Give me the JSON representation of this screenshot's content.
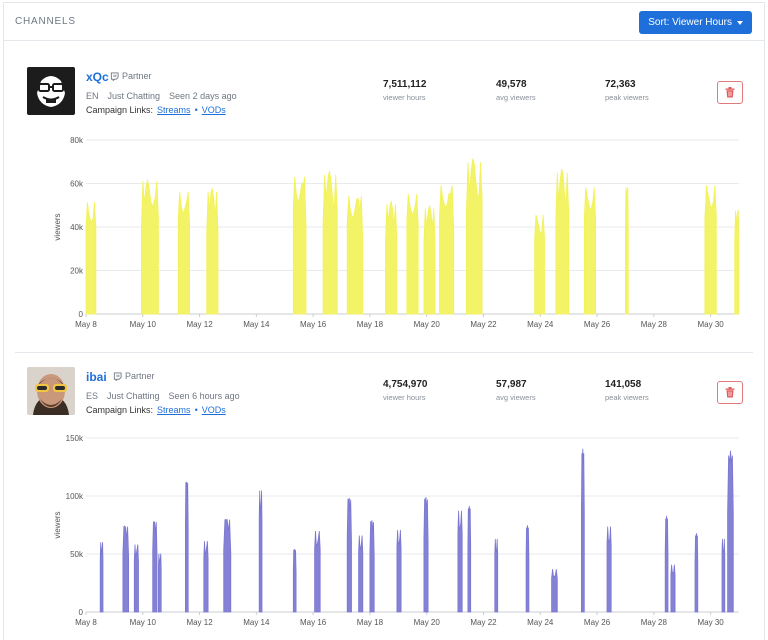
{
  "header": {
    "title": "CHANNELS",
    "sort_label": "Sort: Viewer Hours"
  },
  "channels": [
    {
      "name": "xQc",
      "partner_label": "Partner",
      "language": "EN",
      "category": "Just Chatting",
      "seen": "Seen 2 days ago",
      "campaign_label": "Campaign Links:",
      "links": [
        "Streams",
        "VODs"
      ],
      "link_separator": "•",
      "stats": [
        {
          "value": "7,511,112",
          "label": "viewer hours"
        },
        {
          "value": "49,578",
          "label": "avg viewers"
        },
        {
          "value": "72,363",
          "label": "peak viewers"
        }
      ]
    },
    {
      "name": "ibai",
      "partner_label": "Partner",
      "language": "ES",
      "category": "Just Chatting",
      "seen": "Seen 6 hours ago",
      "campaign_label": "Campaign Links:",
      "links": [
        "Streams",
        "VODs"
      ],
      "link_separator": "•",
      "stats": [
        {
          "value": "4,754,970",
          "label": "viewer hours"
        },
        {
          "value": "57,987",
          "label": "avg viewers"
        },
        {
          "value": "141,058",
          "label": "peak viewers"
        }
      ]
    }
  ],
  "colors": {
    "accent": "#1e6fd9",
    "xqc_series": "#f2f25a",
    "ibai_series": "#7b77d1",
    "delete": "#e05a5a"
  },
  "chart_data": [
    {
      "type": "area",
      "ylabel": "viewers",
      "ylim": [
        0,
        80000
      ],
      "y_ticks": [
        "0",
        "20k",
        "40k",
        "60k",
        "80k"
      ],
      "x_ticks": [
        "May 8",
        "May 10",
        "May 12",
        "May 14",
        "May 16",
        "May 18",
        "May 20",
        "May 22",
        "May 24",
        "May 26",
        "May 28",
        "May 30"
      ],
      "x_range_days": [
        8,
        31
      ],
      "color": "#f2f25a",
      "grid": true,
      "streams": [
        {
          "start": 8.0,
          "end": 8.35,
          "peak": 53000
        },
        {
          "start": 9.95,
          "end": 10.55,
          "peak": 63000
        },
        {
          "start": 11.25,
          "end": 11.65,
          "peak": 58000
        },
        {
          "start": 12.25,
          "end": 12.65,
          "peak": 58000
        },
        {
          "start": 15.3,
          "end": 15.75,
          "peak": 65000
        },
        {
          "start": 16.35,
          "end": 16.85,
          "peak": 66000
        },
        {
          "start": 17.2,
          "end": 17.75,
          "peak": 56000
        },
        {
          "start": 18.55,
          "end": 18.95,
          "peak": 52000
        },
        {
          "start": 19.3,
          "end": 19.7,
          "peak": 57000
        },
        {
          "start": 19.9,
          "end": 20.3,
          "peak": 50000
        },
        {
          "start": 20.45,
          "end": 20.95,
          "peak": 61000
        },
        {
          "start": 21.4,
          "end": 21.95,
          "peak": 72000
        },
        {
          "start": 23.8,
          "end": 24.15,
          "peak": 47000
        },
        {
          "start": 24.55,
          "end": 25.0,
          "peak": 67000
        },
        {
          "start": 25.55,
          "end": 25.95,
          "peak": 60000
        },
        {
          "start": 27.0,
          "end": 27.1,
          "peak": 60000
        },
        {
          "start": 29.8,
          "end": 30.2,
          "peak": 61000
        },
        {
          "start": 30.85,
          "end": 31.0,
          "peak": 49000
        }
      ]
    },
    {
      "type": "area",
      "ylabel": "viewers",
      "ylim": [
        0,
        150000
      ],
      "y_ticks": [
        "0",
        "50k",
        "100k",
        "150k"
      ],
      "x_ticks": [
        "May 8",
        "May 10",
        "May 12",
        "May 14",
        "May 16",
        "May 18",
        "May 20",
        "May 22",
        "May 24",
        "May 26",
        "May 28",
        "May 30"
      ],
      "x_range_days": [
        8,
        31
      ],
      "color": "#7b77d1",
      "grid": true,
      "streams": [
        {
          "start": 8.5,
          "end": 8.6,
          "peak": 62000
        },
        {
          "start": 9.3,
          "end": 9.5,
          "peak": 76000
        },
        {
          "start": 9.7,
          "end": 9.85,
          "peak": 60000
        },
        {
          "start": 10.35,
          "end": 10.5,
          "peak": 80000
        },
        {
          "start": 10.55,
          "end": 10.65,
          "peak": 52000
        },
        {
          "start": 11.5,
          "end": 11.6,
          "peak": 115000
        },
        {
          "start": 12.15,
          "end": 12.3,
          "peak": 63000
        },
        {
          "start": 12.85,
          "end": 13.1,
          "peak": 82000
        },
        {
          "start": 14.1,
          "end": 14.2,
          "peak": 108000
        },
        {
          "start": 15.3,
          "end": 15.4,
          "peak": 55000
        },
        {
          "start": 16.05,
          "end": 16.25,
          "peak": 72000
        },
        {
          "start": 17.2,
          "end": 17.35,
          "peak": 100000
        },
        {
          "start": 17.6,
          "end": 17.75,
          "peak": 68000
        },
        {
          "start": 18.0,
          "end": 18.15,
          "peak": 80000
        },
        {
          "start": 18.95,
          "end": 19.1,
          "peak": 73000
        },
        {
          "start": 19.9,
          "end": 20.05,
          "peak": 100000
        },
        {
          "start": 21.1,
          "end": 21.25,
          "peak": 90000
        },
        {
          "start": 21.45,
          "end": 21.55,
          "peak": 92000
        },
        {
          "start": 22.4,
          "end": 22.5,
          "peak": 65000
        },
        {
          "start": 23.5,
          "end": 23.6,
          "peak": 75000
        },
        {
          "start": 24.4,
          "end": 24.6,
          "peak": 38000
        },
        {
          "start": 25.45,
          "end": 25.55,
          "peak": 141000
        },
        {
          "start": 26.35,
          "end": 26.5,
          "peak": 76000
        },
        {
          "start": 28.4,
          "end": 28.5,
          "peak": 83000
        },
        {
          "start": 28.6,
          "end": 28.75,
          "peak": 42000
        },
        {
          "start": 29.45,
          "end": 29.55,
          "peak": 68000
        },
        {
          "start": 30.4,
          "end": 30.5,
          "peak": 65000
        },
        {
          "start": 30.6,
          "end": 30.8,
          "peak": 139000
        }
      ]
    }
  ]
}
